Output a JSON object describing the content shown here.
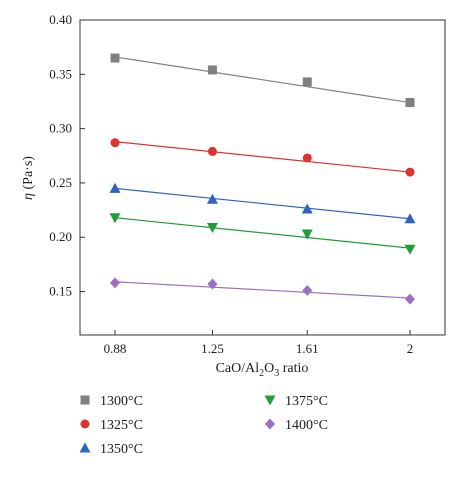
{
  "chart_data": {
    "type": "scatter",
    "xlabel_parts": [
      "CaO/Al",
      "2",
      "O",
      "3",
      " ratio"
    ],
    "ylabel_parts": [
      "η",
      " (Pa·s)"
    ],
    "x": [
      0.88,
      1.25,
      1.61,
      2
    ],
    "x_tick_labels": [
      "0.88",
      "1.25",
      "1.61",
      "2"
    ],
    "ylim": [
      0.11,
      0.4
    ],
    "y_ticks": [
      0.15,
      0.2,
      0.25,
      0.3,
      0.35,
      0.4
    ],
    "y_tick_labels": [
      "0.15",
      "0.20",
      "0.25",
      "0.30",
      "0.35",
      "0.40"
    ],
    "grid": false,
    "legend_position": "below",
    "series": [
      {
        "name": "1300°C",
        "color": "#808080",
        "marker": "square",
        "values": [
          0.365,
          0.354,
          0.343,
          0.324
        ],
        "fit": [
          0.366,
          0.324
        ]
      },
      {
        "name": "1325°C",
        "color": "#e0312b",
        "marker": "circle",
        "values": [
          0.287,
          0.279,
          0.273,
          0.26
        ],
        "fit": [
          0.288,
          0.26
        ]
      },
      {
        "name": "1350°C",
        "color": "#2f63c2",
        "marker": "triangle-up",
        "values": [
          0.245,
          0.235,
          0.226,
          0.217
        ],
        "fit": [
          0.245,
          0.217
        ]
      },
      {
        "name": "1375°C",
        "color": "#1e9e3a",
        "marker": "triangle-down",
        "values": [
          0.218,
          0.209,
          0.203,
          0.189
        ],
        "fit": [
          0.218,
          0.19
        ]
      },
      {
        "name": "1400°C",
        "color": "#9b6fc1",
        "marker": "diamond",
        "values": [
          0.158,
          0.157,
          0.151,
          0.143
        ],
        "fit": [
          0.159,
          0.144
        ]
      }
    ]
  }
}
